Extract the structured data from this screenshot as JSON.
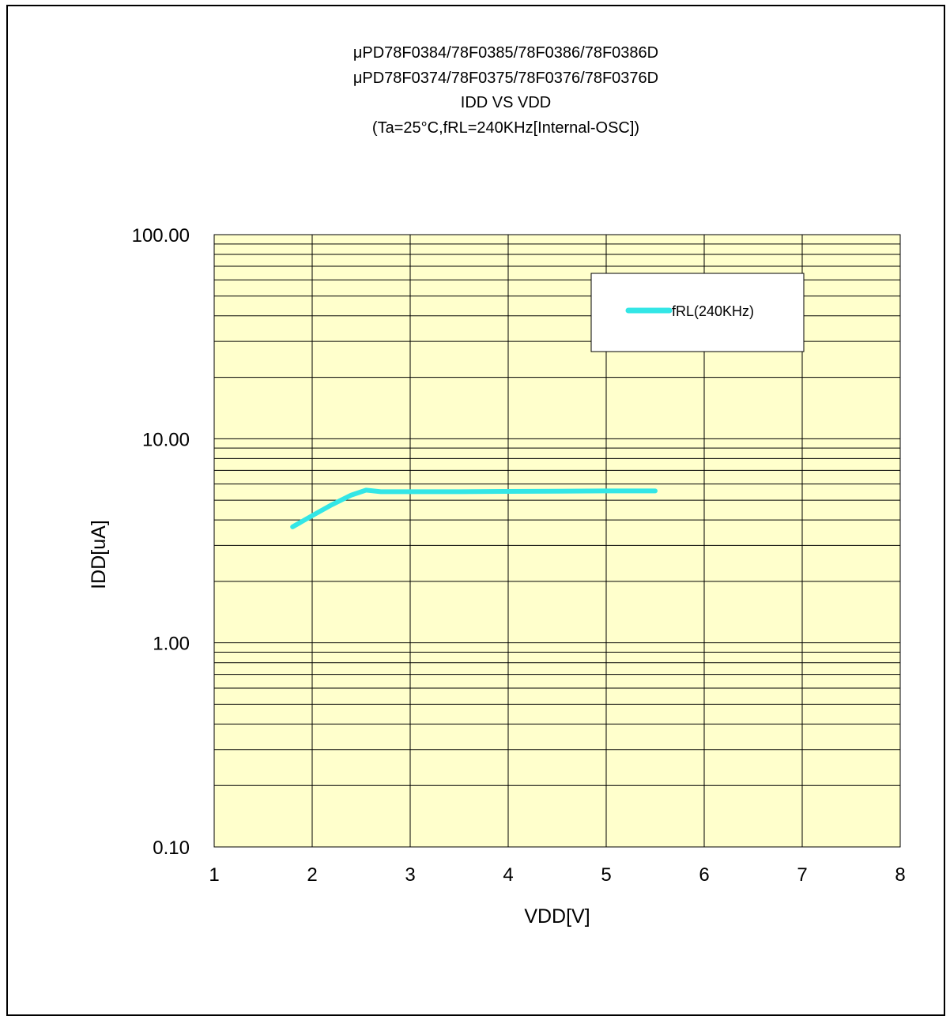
{
  "chart_data": {
    "type": "line",
    "title_lines": [
      "μPD78F0384/78F0385/78F0386/78F0386D",
      "μPD78F0374/78F0375/78F0376/78F0376D",
      "IDD VS VDD",
      "(Ta=25°C,fRL=240KHz[Internal-OSC])"
    ],
    "xlabel": "VDD[V]",
    "ylabel": "IDD[uA]",
    "xlim": [
      1,
      8
    ],
    "ylim": [
      0.1,
      100
    ],
    "y_scale": "log",
    "x_ticks": [
      "1",
      "2",
      "3",
      "4",
      "5",
      "6",
      "7",
      "8"
    ],
    "y_ticks": [
      "100.00",
      "10.00",
      "1.00",
      "0.10"
    ],
    "grid": true,
    "legend_position": "top-right",
    "plot_background": "#ffffcc",
    "series": [
      {
        "name": "fRL(240KHz)",
        "color": "#33e6e6",
        "x": [
          1.8,
          2.0,
          2.2,
          2.4,
          2.55,
          2.7,
          3.0,
          3.5,
          4.0,
          4.5,
          5.0,
          5.5
        ],
        "y": [
          3.7,
          4.2,
          4.75,
          5.3,
          5.6,
          5.5,
          5.5,
          5.5,
          5.52,
          5.53,
          5.55,
          5.55
        ]
      }
    ]
  }
}
